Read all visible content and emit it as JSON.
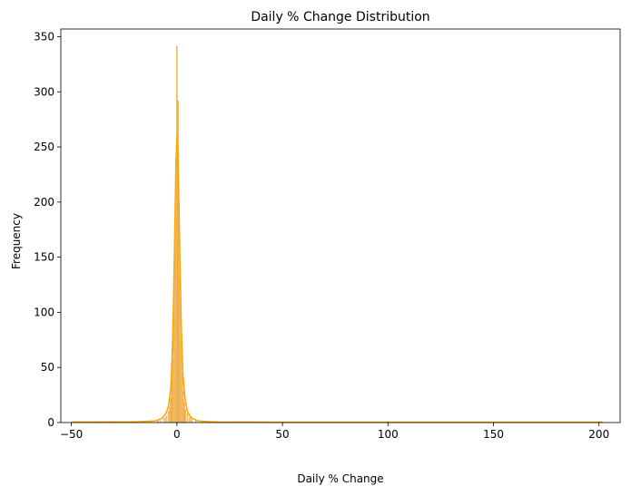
{
  "chart_data": {
    "type": "bar",
    "title": "Daily % Change Distribution",
    "xlabel": "Daily % Change",
    "ylabel": "Frequency",
    "xlim": [
      -55,
      210
    ],
    "ylim": [
      0,
      357
    ],
    "x_ticks": [
      -50,
      0,
      50,
      100,
      150,
      200
    ],
    "y_ticks": [
      0,
      50,
      100,
      150,
      200,
      250,
      300,
      350
    ],
    "grid": false,
    "bar_color": "#f5a623",
    "bar_edge_color": "#e0992a",
    "kde_color": "#ffa500",
    "bin_width": 0.5,
    "bins": [
      {
        "x": -12.0,
        "count": 1
      },
      {
        "x": -9.0,
        "count": 2
      },
      {
        "x": -7.5,
        "count": 2
      },
      {
        "x": -6.0,
        "count": 4
      },
      {
        "x": -5.0,
        "count": 6
      },
      {
        "x": -4.0,
        "count": 10
      },
      {
        "x": -3.5,
        "count": 14
      },
      {
        "x": -3.0,
        "count": 22
      },
      {
        "x": -2.5,
        "count": 40
      },
      {
        "x": -2.0,
        "count": 58
      },
      {
        "x": -1.5,
        "count": 95
      },
      {
        "x": -1.0,
        "count": 160
      },
      {
        "x": -0.5,
        "count": 240
      },
      {
        "x": 0.0,
        "count": 341
      },
      {
        "x": 0.5,
        "count": 292
      },
      {
        "x": 1.0,
        "count": 200
      },
      {
        "x": 1.5,
        "count": 130
      },
      {
        "x": 2.0,
        "count": 75
      },
      {
        "x": 2.5,
        "count": 45
      },
      {
        "x": 3.0,
        "count": 28
      },
      {
        "x": 3.5,
        "count": 18
      },
      {
        "x": 4.0,
        "count": 12
      },
      {
        "x": 5.0,
        "count": 8
      },
      {
        "x": 6.0,
        "count": 5
      },
      {
        "x": 7.0,
        "count": 3
      },
      {
        "x": 9.0,
        "count": 2
      },
      {
        "x": 12.0,
        "count": 1
      },
      {
        "x": 18.0,
        "count": 1
      },
      {
        "x": 35.0,
        "count": 1
      },
      {
        "x": 100.0,
        "count": 1
      },
      {
        "x": 200.0,
        "count": 1
      }
    ],
    "kde": {
      "x": [
        -50,
        -20,
        -10,
        -7,
        -5,
        -4,
        -3,
        -2.5,
        -2,
        -1.5,
        -1,
        -0.5,
        0,
        0.5,
        1,
        1.5,
        2,
        2.5,
        3,
        4,
        5,
        7,
        10,
        15,
        20,
        50,
        100,
        150,
        202
      ],
      "y": [
        0.5,
        0.6,
        1.5,
        4,
        9,
        15,
        30,
        48,
        78,
        120,
        175,
        228,
        260,
        240,
        195,
        140,
        95,
        62,
        40,
        20,
        10,
        4,
        1.5,
        0.8,
        0.5,
        0.3,
        0.3,
        0.3,
        0.3
      ]
    }
  }
}
